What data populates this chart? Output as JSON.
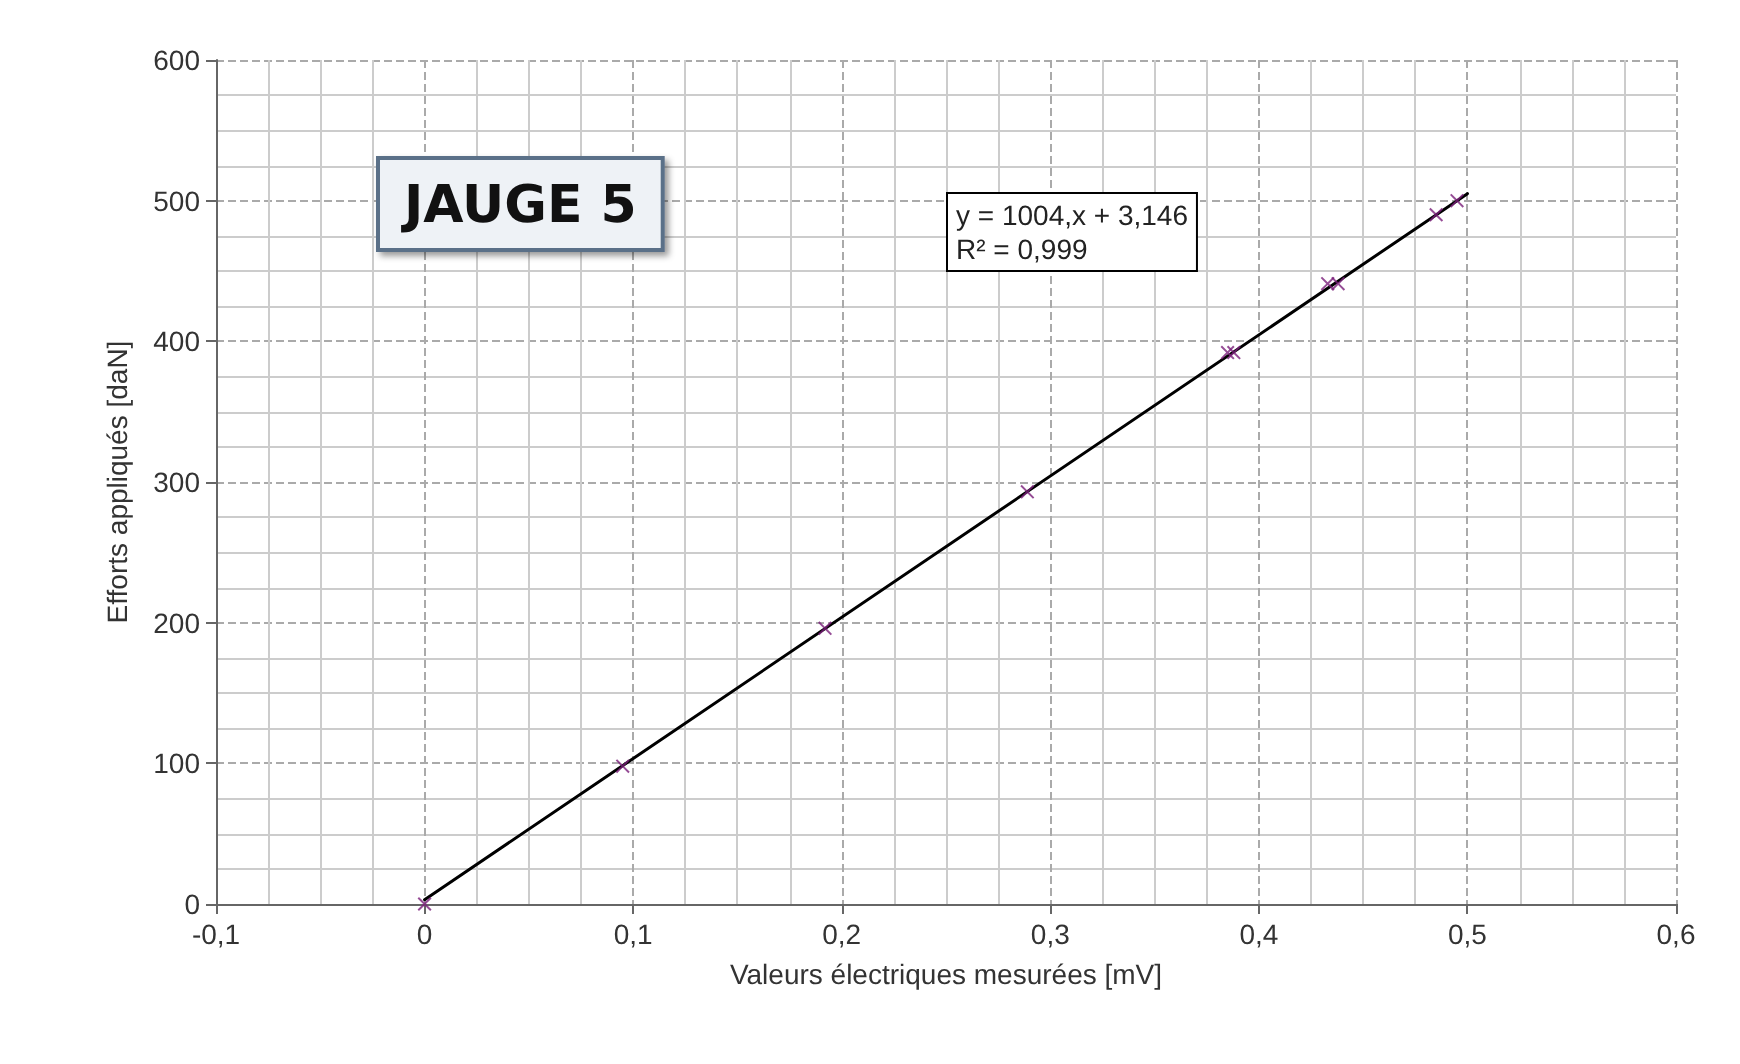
{
  "chart_data": {
    "type": "scatter",
    "xlabel": "Valeurs électriques mesurées [mV]",
    "ylabel": "Efforts appliqués [daN]",
    "annotations": [
      "JAUGE 5",
      "y = 1004,x + 3,146\nR² = 0,999"
    ],
    "xlim": [
      -0.1,
      0.6
    ],
    "ylim": [
      0,
      600
    ],
    "xticks": [
      {
        "value": -0.1,
        "label": "-0,1"
      },
      {
        "value": 0,
        "label": "0"
      },
      {
        "value": 0.1,
        "label": "0,1"
      },
      {
        "value": 0.2,
        "label": "0,2"
      },
      {
        "value": 0.3,
        "label": "0,3"
      },
      {
        "value": 0.4,
        "label": "0,4"
      },
      {
        "value": 0.5,
        "label": "0,5"
      },
      {
        "value": 0.6,
        "label": "0,6"
      }
    ],
    "yticks": [
      0,
      100,
      200,
      300,
      400,
      500,
      600
    ],
    "grid": true,
    "series": [
      {
        "color": "#7a1f7a",
        "marker": "cross",
        "x": [
          0,
          0.095,
          0.192,
          0.289,
          0.385,
          0.388,
          0.433,
          0.438,
          0.485,
          0.495
        ],
        "values": [
          0,
          98,
          196,
          293,
          392,
          392,
          441,
          441,
          490,
          500
        ]
      },
      {
        "type": "line",
        "color": "#000000",
        "marker": "none",
        "line_style": "solid",
        "x": [
          0,
          0.5
        ],
        "values": [
          3,
          505
        ]
      }
    ]
  }
}
